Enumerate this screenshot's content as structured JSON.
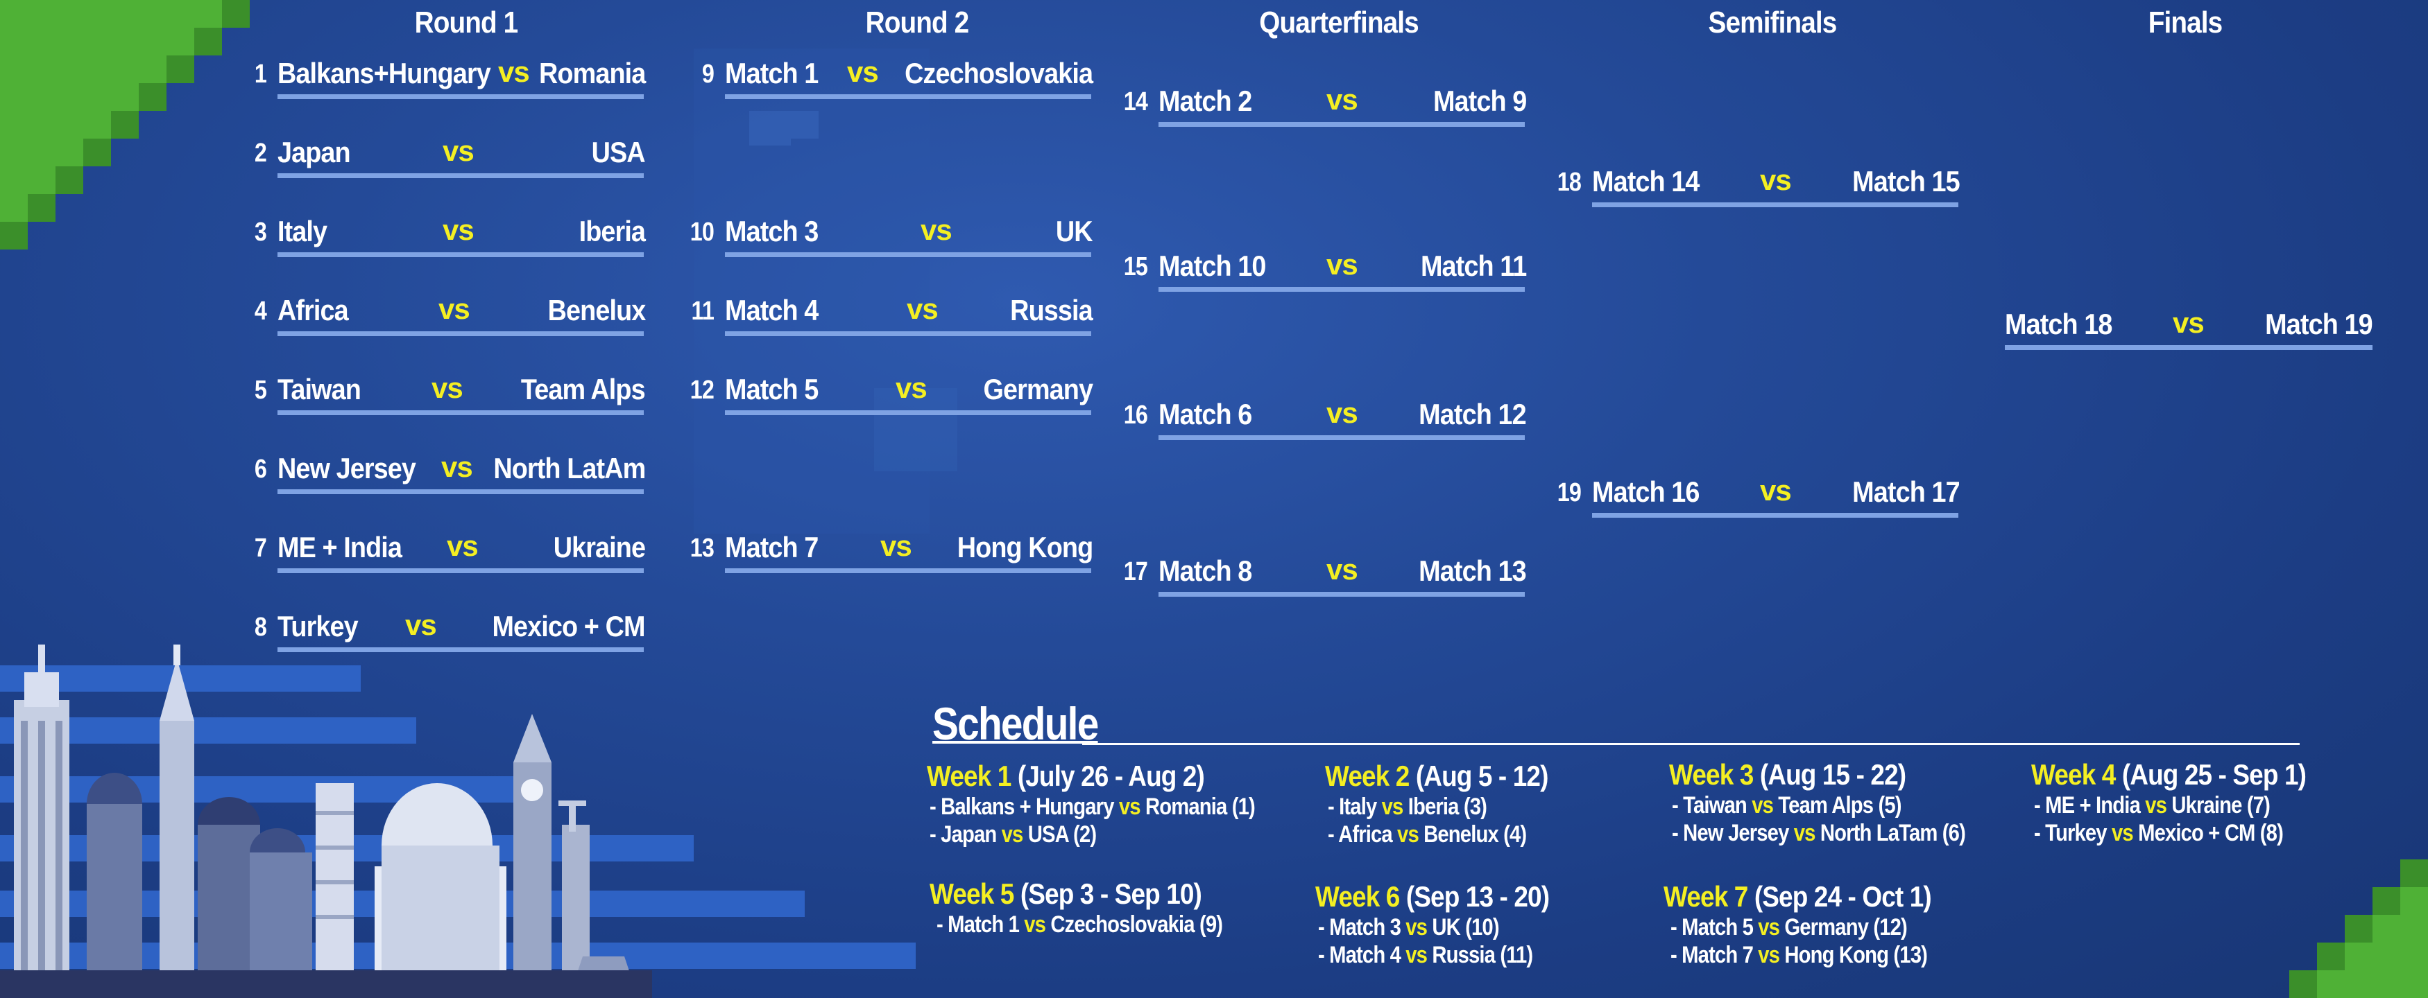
{
  "colors": {
    "accent": "#f4ef22",
    "line": "#7fa3e4",
    "corner": "#4fb136"
  },
  "headers": {
    "round1": "Round 1",
    "round2": "Round 2",
    "quarterfinals": "Quarterfinals",
    "semifinals": "Semifinals",
    "finals": "Finals"
  },
  "vs_label": "vs",
  "round1": [
    {
      "num": "1",
      "team1": "Balkans+Hungary",
      "team2": "Romania"
    },
    {
      "num": "2",
      "team1": "Japan",
      "team2": "USA"
    },
    {
      "num": "3",
      "team1": "Italy",
      "team2": "Iberia"
    },
    {
      "num": "4",
      "team1": "Africa",
      "team2": "Benelux"
    },
    {
      "num": "5",
      "team1": "Taiwan",
      "team2": "Team Alps"
    },
    {
      "num": "6",
      "team1": "New Jersey",
      "team2": "North LatAm"
    },
    {
      "num": "7",
      "team1": "ME + India",
      "team2": "Ukraine"
    },
    {
      "num": "8",
      "team1": "Turkey",
      "team2": "Mexico + CM"
    }
  ],
  "round2": [
    {
      "num": "9",
      "team1": "Match 1",
      "team2": "Czechoslovakia"
    },
    {
      "num": "10",
      "team1": "Match 3",
      "team2": "UK"
    },
    {
      "num": "11",
      "team1": "Match 4",
      "team2": "Russia"
    },
    {
      "num": "12",
      "team1": "Match  5",
      "team2": "Germany"
    },
    {
      "num": "13",
      "team1": "Match 7",
      "team2": "Hong Kong"
    }
  ],
  "quarterfinals": [
    {
      "num": "14",
      "team1": "Match 2",
      "team2": "Match 9"
    },
    {
      "num": "15",
      "team1": "Match 10",
      "team2": "Match 11"
    },
    {
      "num": "16",
      "team1": "Match 6",
      "team2": "Match 12"
    },
    {
      "num": "17",
      "team1": "Match 8",
      "team2": "Match 13"
    }
  ],
  "semifinals": [
    {
      "num": "18",
      "team1": "Match 14",
      "team2": "Match 15"
    },
    {
      "num": "19",
      "team1": "Match 16",
      "team2": "Match 17"
    }
  ],
  "finals": {
    "team1": "Match 18",
    "team2": "Match 19"
  },
  "schedule": {
    "title": "Schedule",
    "weeks": [
      {
        "label": "Week 1",
        "dates": "(July 26 - Aug 2)",
        "matches": [
          {
            "a": "Balkans + Hungary",
            "b": "Romania",
            "num": "(1)"
          },
          {
            "a": "Japan",
            "b": "USA",
            "num": "(2)"
          }
        ]
      },
      {
        "label": "Week 2",
        "dates": "(Aug 5 - 12)",
        "matches": [
          {
            "a": "Italy",
            "b": "Iberia",
            "num": "(3)"
          },
          {
            "a": "Africa",
            "b": "Benelux",
            "num": "(4)"
          }
        ]
      },
      {
        "label": "Week 3",
        "dates": "(Aug 15 - 22)",
        "matches": [
          {
            "a": "Taiwan",
            "b": "Team Alps",
            "num": "(5)"
          },
          {
            "a": "New Jersey",
            "b": "North LaTam",
            "num": "(6)"
          }
        ]
      },
      {
        "label": "Week 4",
        "dates": "(Aug 25 - Sep 1)",
        "matches": [
          {
            "a": "ME + India",
            "b": "Ukraine",
            "num": "(7)"
          },
          {
            "a": "Turkey",
            "b": "Mexico + CM",
            "num": "(8)"
          }
        ]
      },
      {
        "label": "Week 5",
        "dates": "(Sep 3 - Sep 10)",
        "matches": [
          {
            "a": "Match 1",
            "b": "Czechoslovakia",
            "num": "(9)"
          }
        ]
      },
      {
        "label": "Week 6",
        "dates": "(Sep 13 - 20)",
        "matches": [
          {
            "a": "Match 3",
            "b": "UK",
            "num": "(10)"
          },
          {
            "a": "Match 4",
            "b": "Russia",
            "num": "(11)"
          }
        ]
      },
      {
        "label": "Week 7",
        "dates": "(Sep 24 - Oct 1)",
        "matches": [
          {
            "a": "Match 5",
            "b": "Germany",
            "num": "(12)"
          },
          {
            "a": "Match 7",
            "b": "Hong Kong",
            "num": "(13)"
          }
        ]
      }
    ]
  }
}
